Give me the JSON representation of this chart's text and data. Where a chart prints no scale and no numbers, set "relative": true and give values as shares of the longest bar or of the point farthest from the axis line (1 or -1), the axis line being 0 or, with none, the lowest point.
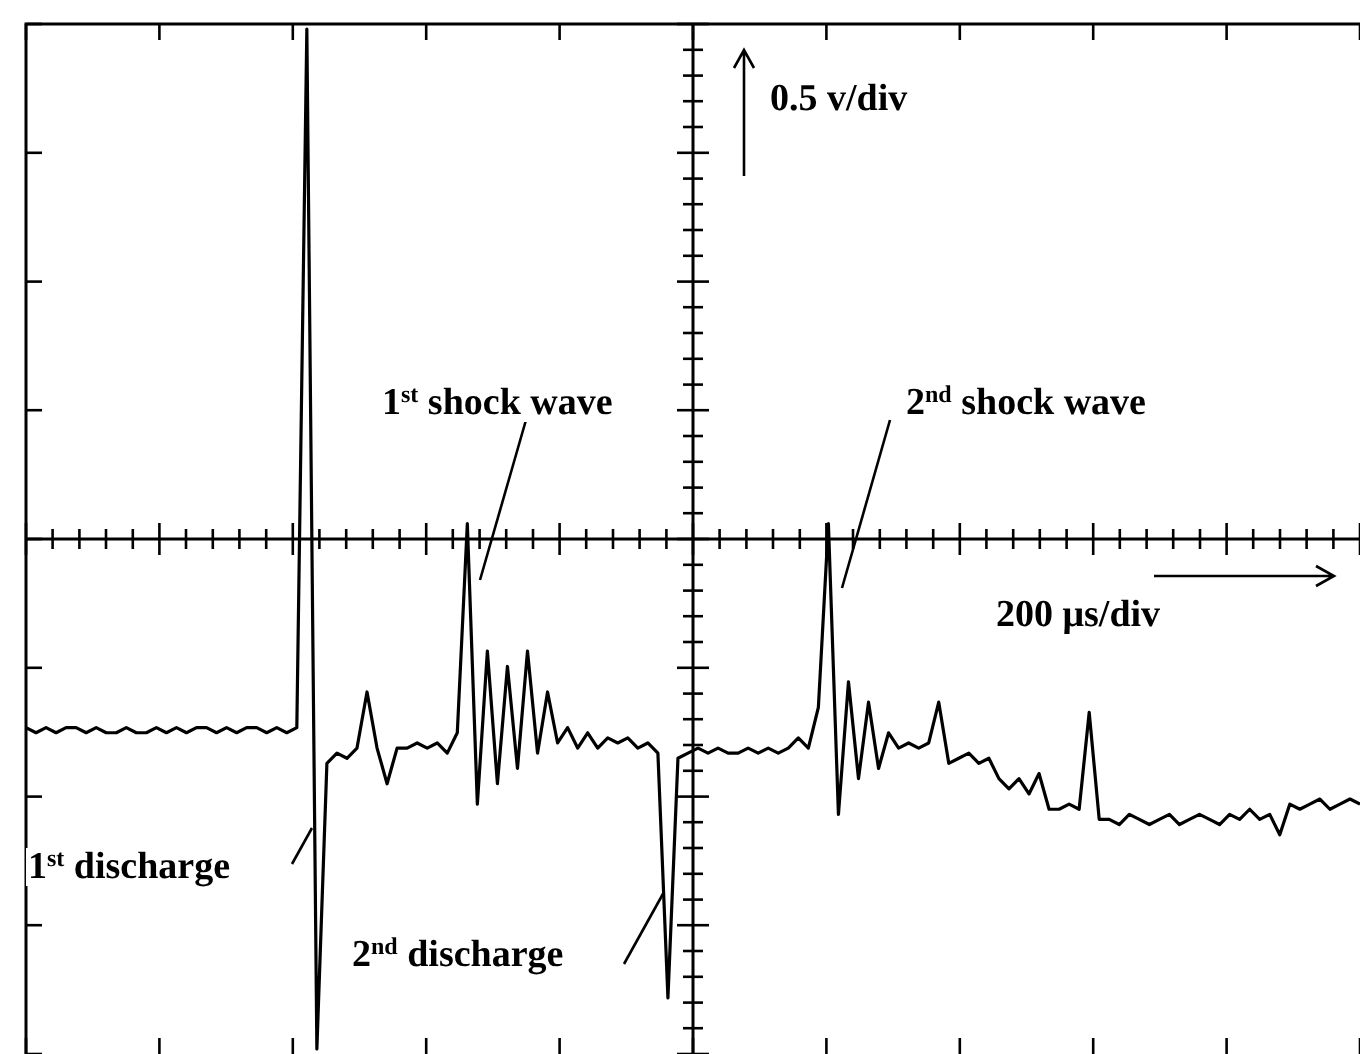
{
  "chart_data": {
    "type": "line",
    "relative": true,
    "color": "#000000",
    "categories": [
      null,
      null,
      null,
      null,
      null,
      null,
      null,
      null,
      null,
      null,
      null,
      null,
      null,
      null,
      null,
      null,
      null,
      null,
      null,
      null,
      null,
      null,
      null,
      null,
      null,
      null,
      null,
      null,
      null,
      null,
      null,
      null,
      null,
      null,
      null,
      null,
      null,
      null,
      null,
      null,
      null,
      null,
      null,
      null,
      null,
      null,
      null,
      null,
      null,
      null,
      null,
      null,
      null,
      null,
      null,
      null,
      null,
      null,
      null,
      null,
      null,
      null,
      null,
      null,
      null,
      null,
      null,
      null,
      null,
      null,
      null,
      null,
      null,
      null,
      null,
      null,
      null,
      null,
      null,
      null,
      null,
      null,
      null,
      null,
      null,
      null,
      null,
      null,
      null,
      null,
      null,
      null,
      null,
      null,
      null,
      null,
      null,
      null,
      null,
      null,
      null,
      null,
      null,
      null,
      null,
      null,
      null,
      null,
      null,
      null,
      null,
      null,
      null,
      null,
      null,
      null,
      null,
      null,
      null,
      null,
      null,
      null,
      null,
      null,
      null,
      null,
      null,
      null,
      null,
      null,
      null,
      null,
      null,
      null
    ],
    "values": [
      -0.37,
      -0.38,
      -0.37,
      -0.38,
      -0.37,
      -0.37,
      -0.38,
      -0.37,
      -0.38,
      -0.38,
      -0.37,
      -0.38,
      -0.38,
      -0.37,
      -0.38,
      -0.37,
      -0.38,
      -0.37,
      -0.37,
      -0.38,
      -0.37,
      -0.38,
      -0.37,
      -0.37,
      -0.38,
      -0.37,
      -0.38,
      -0.37,
      1,
      -1,
      -0.44,
      -0.42,
      -0.43,
      -0.41,
      -0.3,
      -0.41,
      -0.48,
      -0.41,
      -0.41,
      -0.4,
      -0.41,
      -0.4,
      -0.42,
      -0.38,
      0.03,
      -0.52,
      -0.22,
      -0.48,
      -0.25,
      -0.45,
      -0.22,
      -0.42,
      -0.3,
      -0.4,
      -0.37,
      -0.41,
      -0.38,
      -0.41,
      -0.39,
      -0.4,
      -0.39,
      -0.41,
      -0.4,
      -0.42,
      -0.9,
      -0.43,
      -0.42,
      -0.41,
      -0.42,
      -0.41,
      -0.42,
      -0.42,
      -0.41,
      -0.42,
      -0.41,
      -0.42,
      -0.41,
      -0.39,
      -0.41,
      -0.33,
      0.03,
      -0.54,
      -0.28,
      -0.47,
      -0.32,
      -0.45,
      -0.38,
      -0.41,
      -0.4,
      -0.41,
      -0.4,
      -0.32,
      -0.44,
      -0.43,
      -0.42,
      -0.44,
      -0.43,
      -0.47,
      -0.49,
      -0.47,
      -0.5,
      -0.46,
      -0.53,
      -0.53,
      -0.52,
      -0.53,
      -0.34,
      -0.55,
      -0.55,
      -0.56,
      -0.54,
      -0.55,
      -0.56,
      -0.55,
      -0.54,
      -0.56,
      -0.55,
      -0.54,
      -0.55,
      -0.56,
      -0.54,
      -0.55,
      -0.53,
      -0.55,
      -0.54,
      -0.58,
      -0.52,
      -0.53,
      -0.52,
      -0.51,
      -0.53,
      -0.52,
      -0.51,
      -0.52
    ],
    "ref_lines": [
      {
        "axis": "y",
        "value": 0,
        "color": "#000000"
      }
    ],
    "annotations": [
      "0.5 v/div",
      "1$^{st}$ shock wave",
      "2$^{nd}$ shock wave",
      "200 μs/div",
      "1$^{st}$ discharge",
      "2$^{nd}$ discharge"
    ]
  }
}
